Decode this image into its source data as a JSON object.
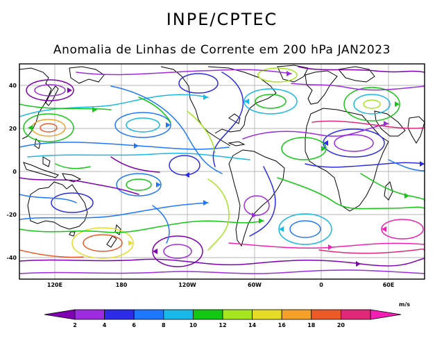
{
  "header": {
    "org": "INPE/CPTEC",
    "title": "Anomalia de Linhas de Corrente em 200 hPa JAN2023"
  },
  "map": {
    "lat_ticks": [
      "40",
      "20",
      "0",
      "-20",
      "-40"
    ],
    "lon_ticks": [
      "120E",
      "180",
      "120W",
      "60W",
      "0",
      "60E"
    ],
    "lat_range": [
      -50,
      50
    ],
    "lon_range": [
      100,
      460
    ]
  },
  "colorbar": {
    "unit": "m/s",
    "labels": [
      "2",
      "4",
      "6",
      "8",
      "10",
      "12",
      "14",
      "16",
      "18",
      "20"
    ],
    "colors": [
      "#7f00b2",
      "#9d2be0",
      "#2b2be8",
      "#1e78ff",
      "#18b8e8",
      "#12c812",
      "#a5e61e",
      "#e6dc28",
      "#f5a028",
      "#ec5a28",
      "#e02878",
      "#f51eb4"
    ]
  }
}
